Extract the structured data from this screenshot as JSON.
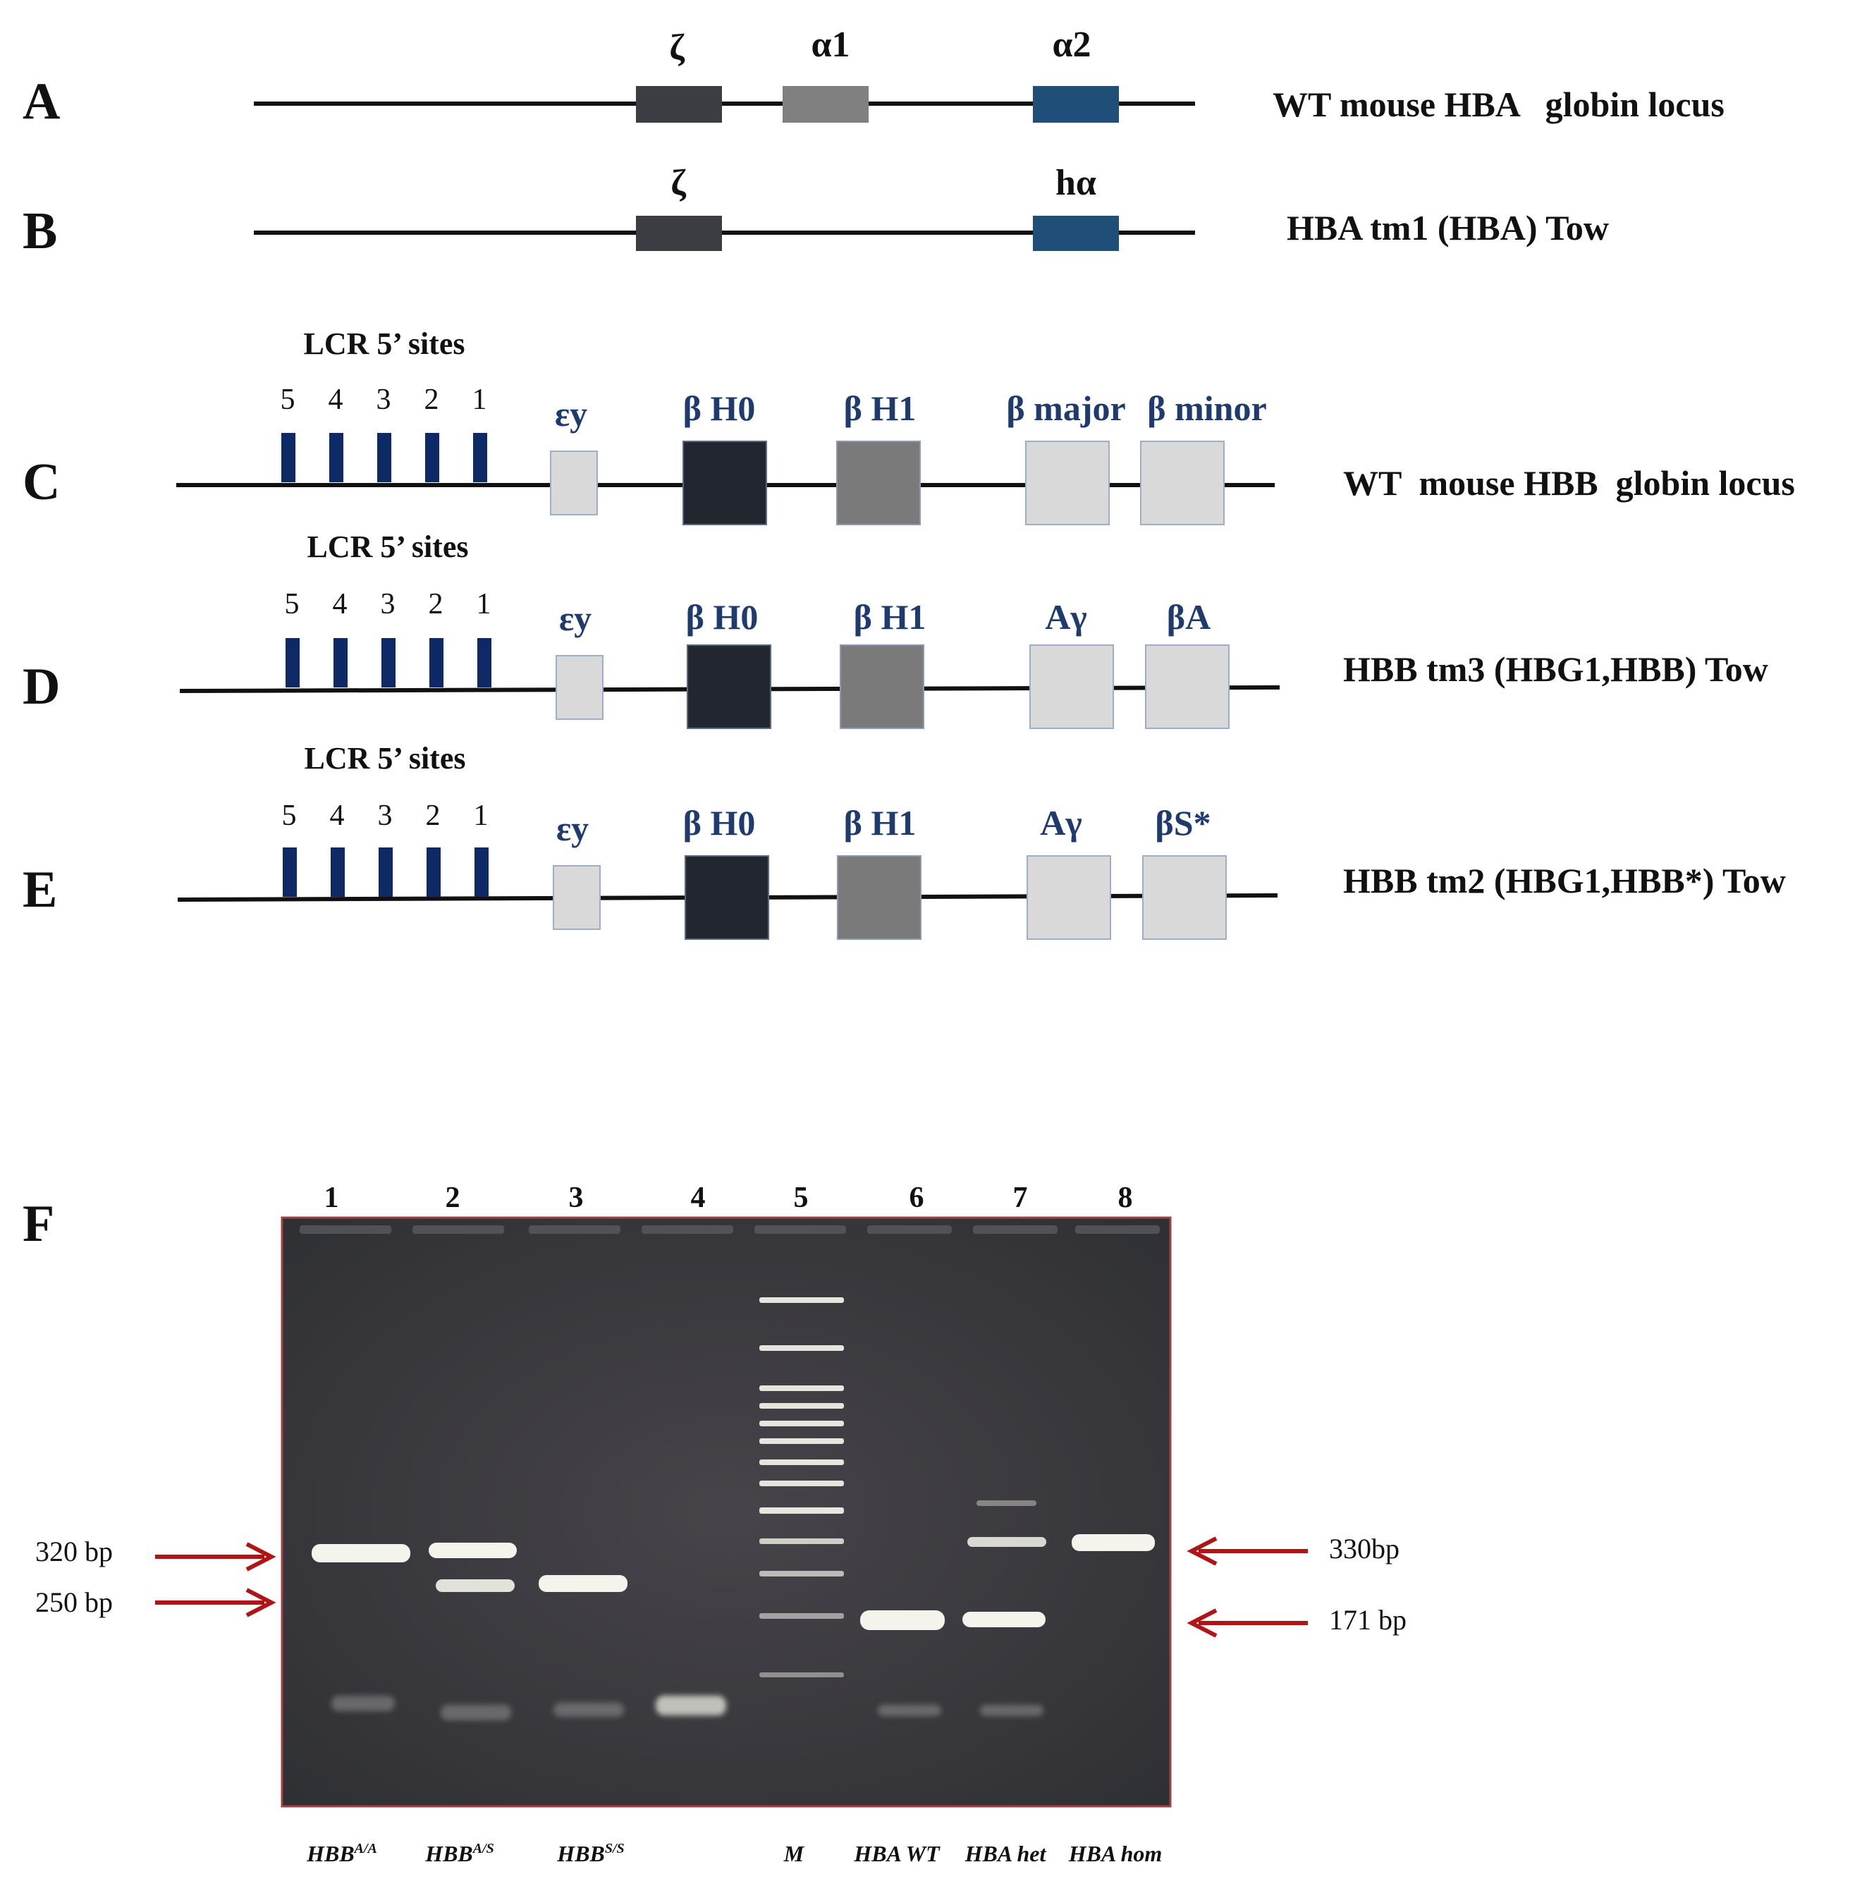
{
  "colors": {
    "line": "#111111",
    "zeta": "#3b3d42",
    "alpha1": "#808080",
    "alpha2": "#1f4e79",
    "lcr_site": "#0d2a66",
    "epsilon": "#d9d9d9",
    "bh0": "#22272f",
    "bh1": "#7a7a7a",
    "light_gene": "#d9d9d9",
    "gene_blue_text": "#1f3b6e",
    "arrow": "#b01414",
    "gel_background": "#3c3c40",
    "gel_border": "#a04040",
    "band": "#f2f2ea"
  },
  "panels": {
    "A": {
      "letter": "A",
      "title": "WT mouse HBA   globin locus",
      "genes": [
        {
          "label": "ζ",
          "color": "#3b3d42"
        },
        {
          "label": "α1",
          "color": "#808080"
        },
        {
          "label": "α2",
          "color": "#1f4e79"
        }
      ]
    },
    "B": {
      "letter": "B",
      "title": "HBA tm1 (HBA) Tow",
      "genes": [
        {
          "label": "ζ",
          "color": "#3b3d42"
        },
        {
          "label": "hα",
          "color": "#1f4e79"
        }
      ]
    },
    "C": {
      "letter": "C",
      "lcr_title": "LCR 5’ sites",
      "lcr_numbers": [
        "5",
        "4",
        "3",
        "2",
        "1"
      ],
      "title": "WT  mouse HBB  globin locus",
      "genes": [
        "εy",
        "β H0",
        "β H1",
        "β major",
        "β minor"
      ]
    },
    "D": {
      "letter": "D",
      "lcr_title": "LCR 5’ sites",
      "lcr_numbers": [
        "5",
        "4",
        "3",
        "2",
        "1"
      ],
      "title": "HBB tm3 (HBG1,HBB) Tow",
      "genes": [
        "εy",
        "β H0",
        "β H1",
        "Aγ",
        "βA"
      ]
    },
    "E": {
      "letter": "E",
      "lcr_title": "LCR 5’ sites",
      "lcr_numbers": [
        "5",
        "4",
        "3",
        "2",
        "1"
      ],
      "title": "HBB tm2 (HBG1,HBB*) Tow",
      "genes": [
        "εy",
        "β H0",
        "β H1",
        "Aγ",
        "βS*"
      ]
    },
    "F": {
      "letter": "F",
      "lane_numbers": [
        "1",
        "2",
        "3",
        "4",
        "5",
        "6",
        "7",
        "8"
      ],
      "left_markers": [
        "320 bp",
        "250 bp"
      ],
      "right_markers": [
        "330bp",
        "171 bp"
      ],
      "samples": [
        {
          "base": "HBB",
          "sup": "A/A"
        },
        {
          "base": "HBB",
          "sup": "A/S"
        },
        {
          "base": "HBB",
          "sup": "S/S"
        },
        {
          "base": "",
          "sup": ""
        },
        {
          "base": "M",
          "sup": ""
        },
        {
          "base": "HBA WT",
          "sup": ""
        },
        {
          "base": "HBA het",
          "sup": ""
        },
        {
          "base": "HBA hom",
          "sup": ""
        }
      ]
    }
  }
}
